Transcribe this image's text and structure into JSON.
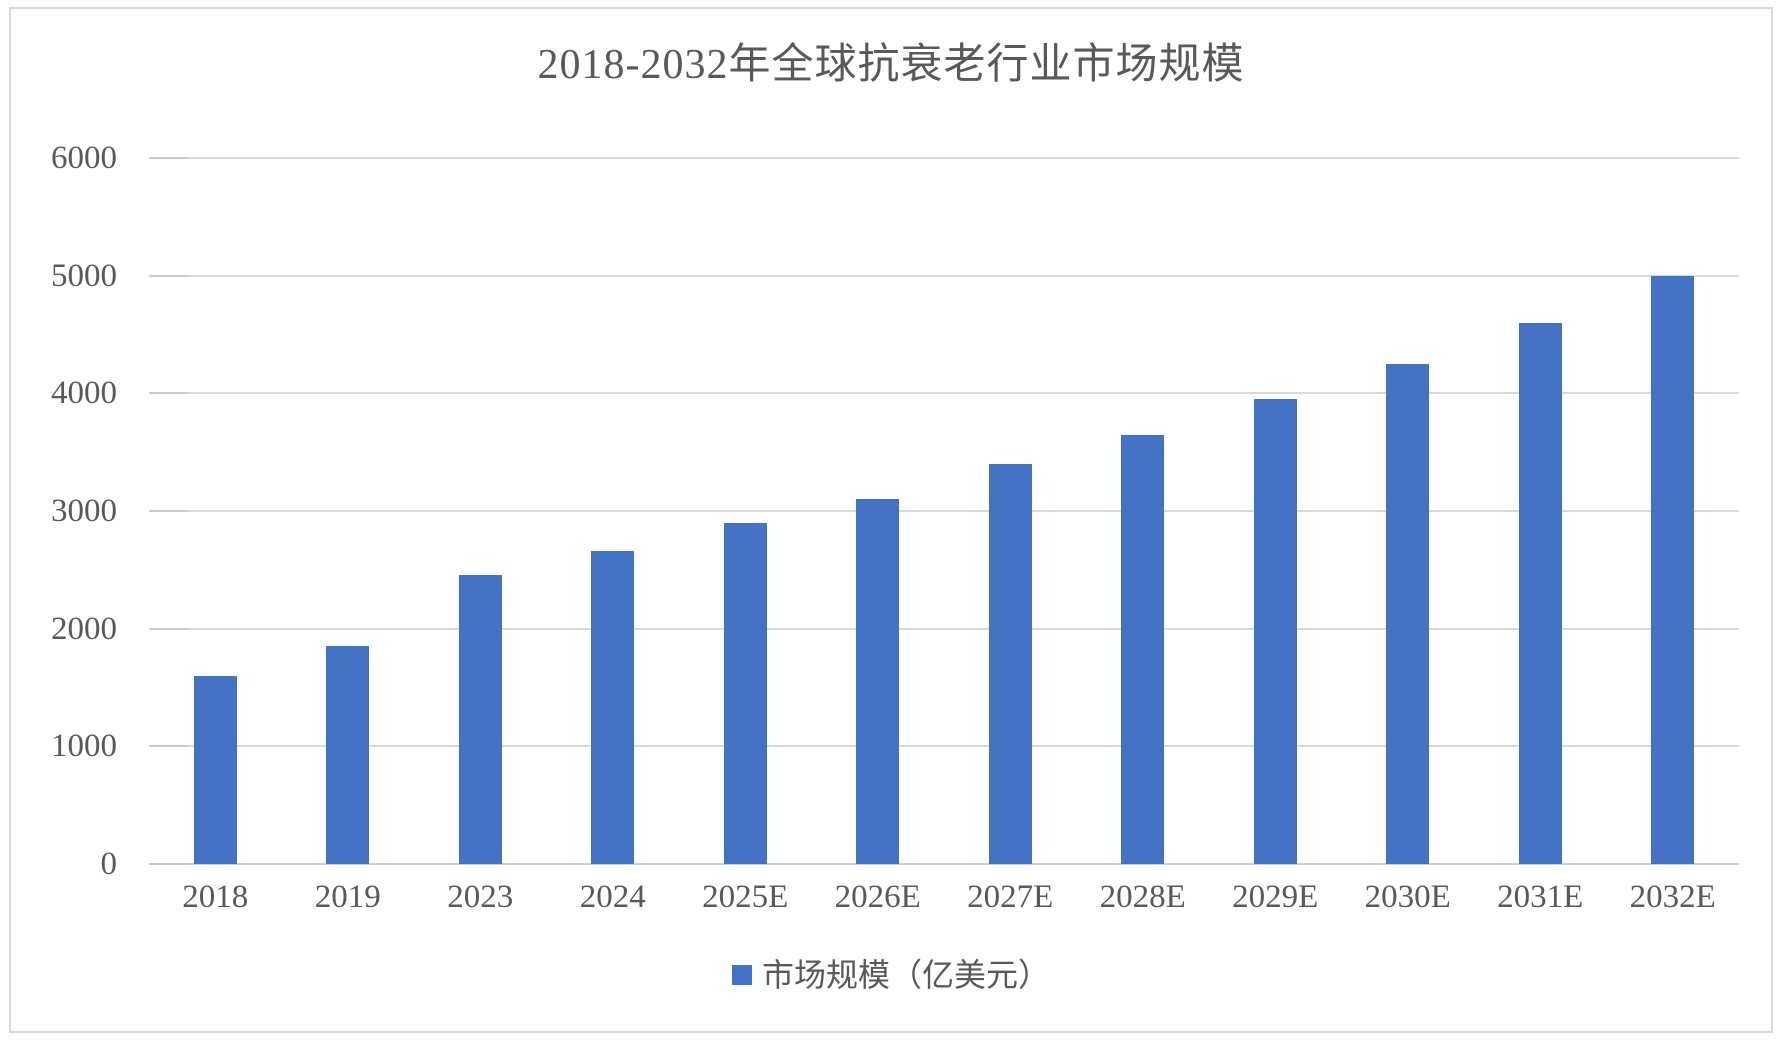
{
  "chart_data": {
    "type": "bar",
    "title": "2018-2032年全球抗衰老行业市场规模",
    "categories": [
      "2018",
      "2019",
      "2023",
      "2024",
      "2025E",
      "2026E",
      "2027E",
      "2028E",
      "2029E",
      "2030E",
      "2031E",
      "2032E"
    ],
    "values": [
      1600,
      1850,
      2460,
      2660,
      2900,
      3100,
      3400,
      3650,
      3950,
      4250,
      4600,
      5000
    ],
    "series": [
      {
        "name": "市场规模（亿美元）",
        "values": [
          1600,
          1850,
          2460,
          2660,
          2900,
          3100,
          3400,
          3650,
          3950,
          4250,
          4600,
          5000
        ]
      }
    ],
    "legend": "市场规模（亿美元）",
    "xlabel": "",
    "ylabel": "",
    "ylim": [
      0,
      6000
    ],
    "yticks": [
      0,
      1000,
      2000,
      3000,
      4000,
      5000,
      6000
    ],
    "grid": true,
    "legend_position": "bottom",
    "colors": {
      "bar": "#4472C4",
      "text": "#595959",
      "gridline": "#D9D9D9",
      "frame_border": "#D9D9D9",
      "background": "#FFFFFF"
    }
  }
}
